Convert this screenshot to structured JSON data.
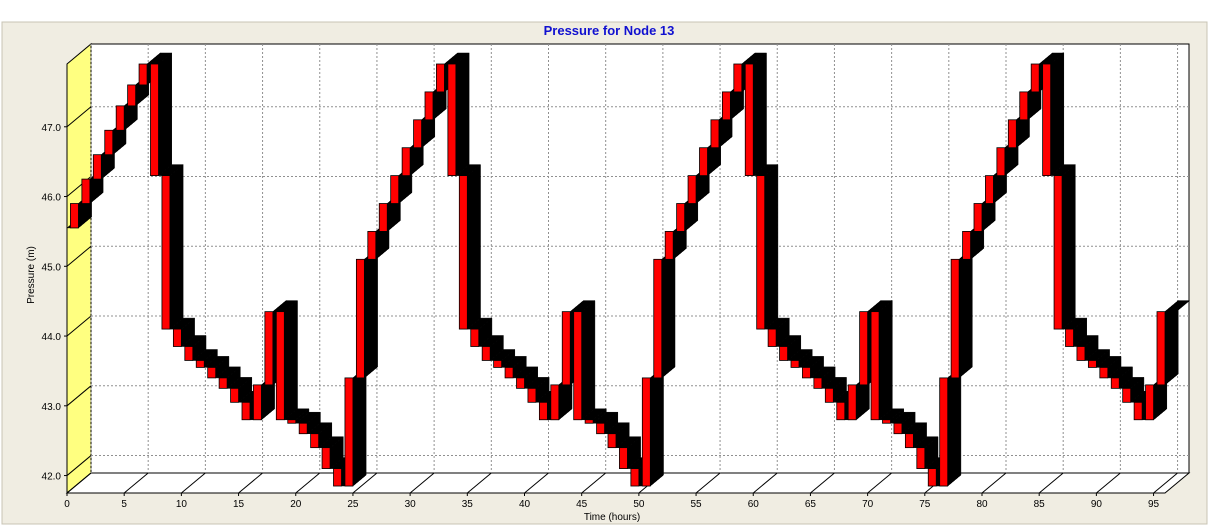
{
  "banner_text": "",
  "chart_data": {
    "type": "bar",
    "title": "Pressure for Node 13",
    "xlabel": "Time (hours)",
    "ylabel": "Pressure (m)",
    "xlim": [
      0,
      96
    ],
    "ylim": [
      41.75,
      47.9
    ],
    "x_ticks": [
      0,
      5,
      10,
      15,
      20,
      25,
      30,
      35,
      40,
      45,
      50,
      55,
      60,
      65,
      70,
      75,
      80,
      85,
      90,
      95
    ],
    "y_ticks": [
      42.0,
      43.0,
      44.0,
      45.0,
      46.0,
      47.0
    ],
    "y_tick_labels": [
      "42.0",
      "43.0",
      "44.0",
      "45.0",
      "46.0",
      "47.0"
    ],
    "grid": true,
    "legend": "none",
    "three_d": true,
    "colors": {
      "bar_front": "#ff0000",
      "bar_side": "#000000",
      "back_wall": "#ffffff",
      "side_wall": "#ffff80",
      "plot_bg": "#f0ede2",
      "title": "#1010d0",
      "grid": "#909090"
    },
    "series": [
      {
        "values": [
          45.55,
          45.9,
          46.25,
          46.6,
          46.95,
          47.3,
          47.6,
          47.9,
          46.3,
          44.1,
          43.85,
          43.65,
          43.55,
          43.4,
          43.25,
          43.05,
          42.8,
          43.3,
          44.35,
          42.8,
          42.75,
          42.6,
          42.4,
          42.1,
          41.85,
          43.4,
          45.1,
          45.5,
          45.9,
          46.3,
          46.7,
          47.1,
          47.5,
          47.9,
          46.3,
          44.1,
          43.85,
          43.65,
          43.55,
          43.4,
          43.25,
          43.05,
          42.8,
          43.3,
          44.35,
          42.8,
          42.75,
          42.6,
          42.4,
          42.1,
          41.85,
          43.4,
          45.1,
          45.5,
          45.9,
          46.3,
          46.7,
          47.1,
          47.5,
          47.9,
          46.3,
          44.1,
          43.85,
          43.65,
          43.55,
          43.4,
          43.25,
          43.05,
          42.8,
          43.3,
          44.35,
          42.8,
          42.75,
          42.6,
          42.4,
          42.1,
          41.85,
          43.4,
          45.1,
          45.5,
          45.9,
          46.3,
          46.7,
          47.1,
          47.5,
          47.9,
          46.3,
          44.1,
          43.85,
          43.65,
          43.55,
          43.4,
          43.25,
          43.05,
          42.8,
          43.3,
          44.35
        ]
      }
    ]
  }
}
